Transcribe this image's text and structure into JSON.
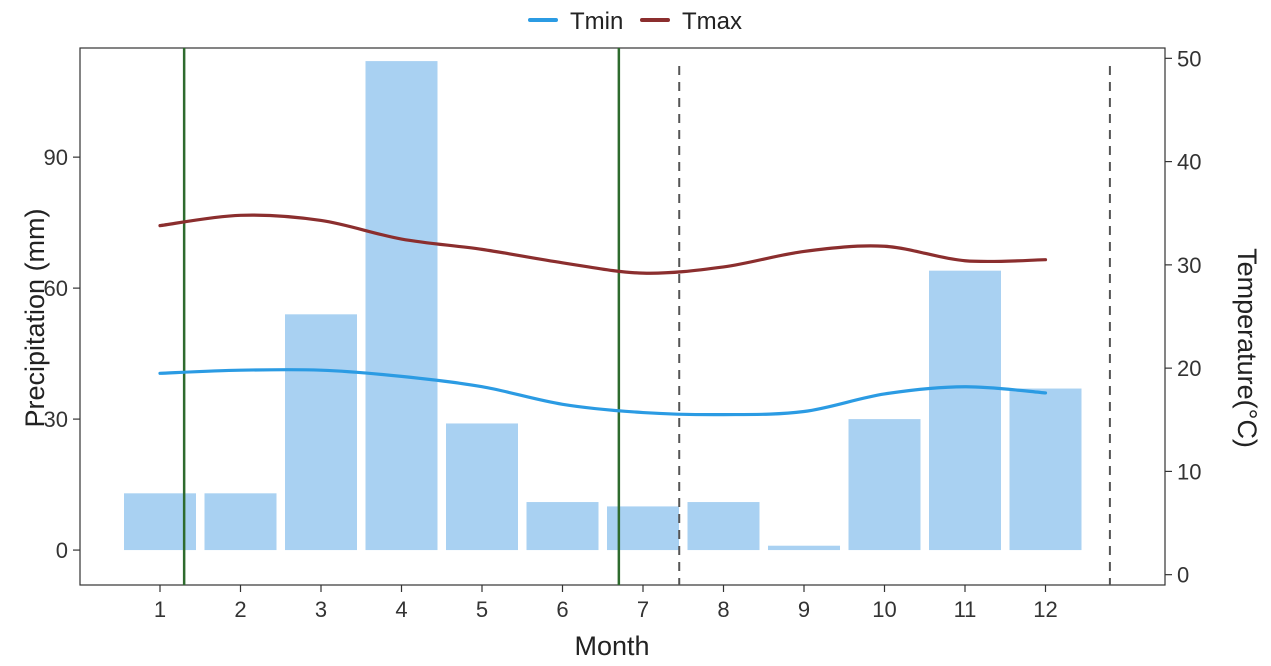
{
  "chart_data": {
    "type": "bar+line",
    "months": [
      1,
      2,
      3,
      4,
      5,
      6,
      7,
      8,
      9,
      10,
      11,
      12
    ],
    "xlabel": "Month",
    "ylabel_left": "Precipitation (mm)",
    "ylabel_right": "Temperature(°C)",
    "ylim_left": [
      -8,
      115
    ],
    "yticks_left": [
      0,
      30,
      60,
      90
    ],
    "ylim_right": [
      -1,
      51
    ],
    "yticks_right": [
      0,
      10,
      20,
      30,
      40,
      50
    ],
    "precipitation": [
      13,
      13,
      54,
      112,
      29,
      11,
      10,
      11,
      1,
      30,
      64,
      37
    ],
    "series": [
      {
        "name": "Tmin",
        "values": [
          19.5,
          19.8,
          19.8,
          19.2,
          18.2,
          16.5,
          15.7,
          15.5,
          15.8,
          17.5,
          18.2,
          17.6
        ],
        "color": "#2b9be3"
      },
      {
        "name": "Tmax",
        "values": [
          33.8,
          34.8,
          34.3,
          32.5,
          31.5,
          30.2,
          29.2,
          29.8,
          31.3,
          31.8,
          30.4,
          30.5
        ],
        "color": "#8b2e2e"
      }
    ],
    "bar_color": "#a9d1f2",
    "solid_vlines_month": [
      1.3,
      6.7
    ],
    "solid_vline_color": "#2e6b2e",
    "dashed_vlines_month": [
      7.45,
      12.8
    ],
    "dashed_vline_color": "#555555",
    "legend_position": "top-center",
    "grid": false
  }
}
